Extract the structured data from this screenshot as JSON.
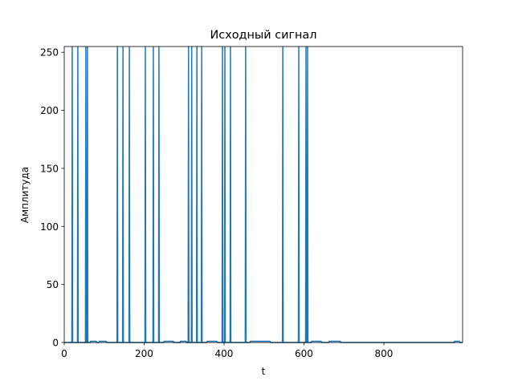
{
  "chart_data": {
    "type": "line",
    "title": "Исходный сигнал",
    "xlabel": "t",
    "ylabel": "Амплитуда",
    "color": "#1f77b4",
    "x": [
      0,
      19,
      20,
      21,
      33,
      34,
      35,
      53,
      54,
      55,
      57,
      58,
      59,
      65,
      66,
      80,
      81,
      87,
      88,
      105,
      106,
      132,
      133,
      134,
      146,
      147,
      148,
      162,
      163,
      164,
      202,
      203,
      204,
      222,
      223,
      224,
      236,
      237,
      238,
      249,
      250,
      273,
      274,
      290,
      291,
      305,
      306,
      310,
      311,
      312,
      318,
      319,
      320,
      331,
      332,
      333,
      343,
      344,
      345,
      357,
      358,
      382,
      383,
      395,
      396,
      397,
      401,
      402,
      403,
      415,
      416,
      417,
      453,
      454,
      455,
      465,
      466,
      515,
      516,
      546,
      547,
      548,
      586,
      587,
      588,
      604,
      605,
      606,
      608,
      609,
      610,
      618,
      619,
      643,
      644,
      662,
      663,
      691,
      692,
      976,
      977,
      989,
      990,
      997
    ],
    "values": [
      0,
      0,
      255,
      0,
      0,
      255,
      0,
      0,
      255,
      0,
      0,
      255,
      0,
      0,
      1,
      1,
      0,
      0,
      1,
      1,
      0,
      0,
      255,
      0,
      0,
      255,
      0,
      0,
      255,
      0,
      0,
      255,
      0,
      0,
      255,
      0,
      0,
      255,
      0,
      0,
      1,
      1,
      0,
      0,
      1,
      1,
      0,
      0,
      255,
      0,
      0,
      255,
      0,
      0,
      255,
      0,
      0,
      255,
      0,
      0,
      1,
      1,
      0,
      0,
      255,
      0,
      0,
      255,
      0,
      0,
      255,
      0,
      0,
      255,
      0,
      0,
      1,
      1,
      0,
      0,
      255,
      0,
      0,
      255,
      0,
      0,
      255,
      0,
      0,
      255,
      0,
      0,
      1,
      1,
      0,
      0,
      1,
      1,
      0,
      0,
      1,
      1,
      0,
      0
    ],
    "xlim": [
      0,
      997
    ],
    "ylim": [
      0,
      255
    ],
    "xticks": [
      0,
      200,
      400,
      600,
      800
    ],
    "yticks": [
      0,
      50,
      100,
      150,
      200,
      250
    ]
  }
}
